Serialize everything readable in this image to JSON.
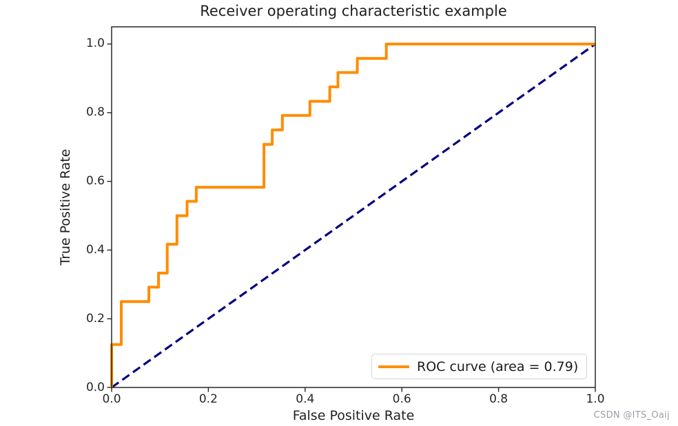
{
  "page": {
    "watermark": "CSDN @ITS_Oaij"
  },
  "colors": {
    "roc_curve": "#ff8c00",
    "chance_line": "#000080",
    "axis": "#262626",
    "legend_border": "#d4d4d4",
    "watermark": "#9aa0a6"
  },
  "legend": {
    "label": "ROC curve (area = 0.79)",
    "position": "lower right"
  },
  "chart_data": {
    "type": "line",
    "title": "Receiver operating characteristic example",
    "xlabel": "False Positive Rate",
    "ylabel": "True Positive Rate",
    "xlim": [
      0.0,
      1.0
    ],
    "ylim": [
      0.0,
      1.05
    ],
    "x_ticks": [
      "0.0",
      "0.2",
      "0.4",
      "0.6",
      "0.8",
      "1.0"
    ],
    "y_ticks": [
      "0.0",
      "0.2",
      "0.4",
      "0.6",
      "0.8",
      "1.0"
    ],
    "grid": false,
    "legend_position": "lower right",
    "auc": 0.79,
    "series": [
      {
        "name": "chance-diagonal",
        "color": "#000080",
        "line_style": "dashed",
        "line_width": 3.2,
        "points": [
          [
            0,
            0
          ],
          [
            1,
            1
          ]
        ]
      },
      {
        "name": "ROC curve (area = 0.79)",
        "color": "#ff8c00",
        "line_style": "solid",
        "line_width": 4,
        "points": [
          [
            0,
            0
          ],
          [
            0,
            0.125
          ],
          [
            0.02,
            0.125
          ],
          [
            0.02,
            0.25
          ],
          [
            0.077,
            0.25
          ],
          [
            0.077,
            0.292
          ],
          [
            0.097,
            0.292
          ],
          [
            0.097,
            0.333
          ],
          [
            0.115,
            0.333
          ],
          [
            0.115,
            0.417
          ],
          [
            0.135,
            0.417
          ],
          [
            0.135,
            0.5
          ],
          [
            0.156,
            0.5
          ],
          [
            0.156,
            0.542
          ],
          [
            0.175,
            0.542
          ],
          [
            0.175,
            0.583
          ],
          [
            0.315,
            0.583
          ],
          [
            0.315,
            0.708
          ],
          [
            0.332,
            0.708
          ],
          [
            0.332,
            0.75
          ],
          [
            0.353,
            0.75
          ],
          [
            0.353,
            0.792
          ],
          [
            0.41,
            0.792
          ],
          [
            0.41,
            0.833
          ],
          [
            0.451,
            0.833
          ],
          [
            0.451,
            0.875
          ],
          [
            0.468,
            0.875
          ],
          [
            0.468,
            0.917
          ],
          [
            0.508,
            0.917
          ],
          [
            0.508,
            0.958
          ],
          [
            0.568,
            0.958
          ],
          [
            0.568,
            1.0
          ],
          [
            1.0,
            1.0
          ]
        ]
      }
    ]
  }
}
